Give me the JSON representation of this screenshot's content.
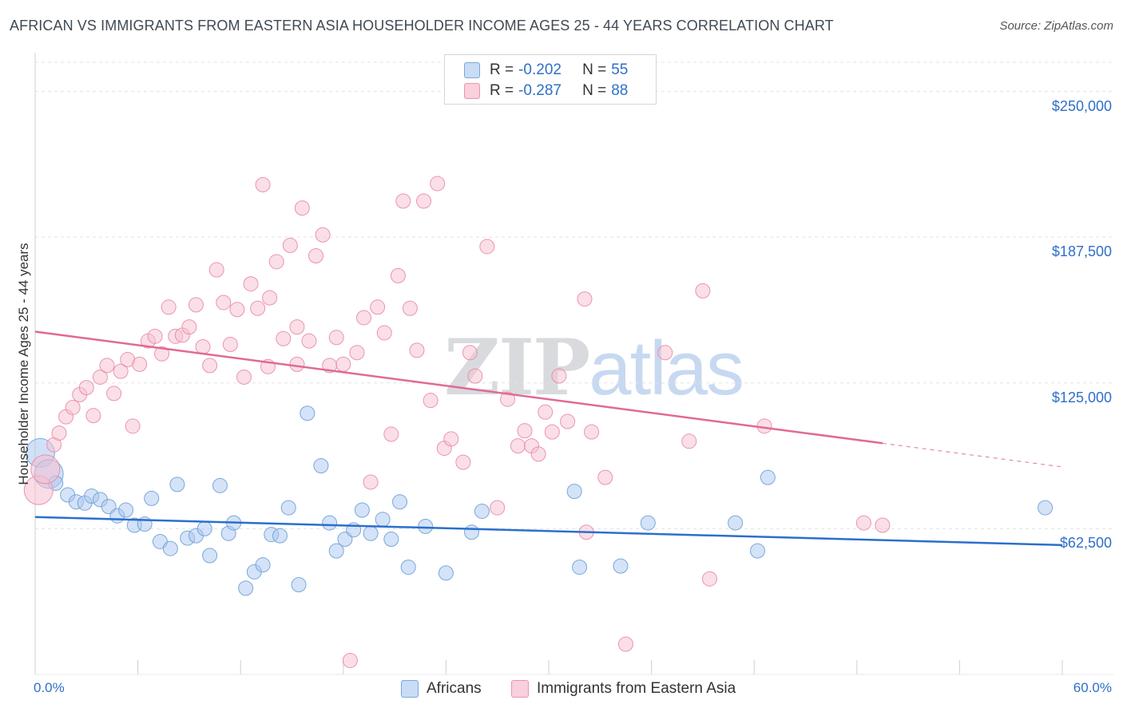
{
  "header": {
    "title": "AFRICAN VS IMMIGRANTS FROM EASTERN ASIA HOUSEHOLDER INCOME AGES 25 - 44 YEARS CORRELATION CHART",
    "source": "Source: ZipAtlas.com"
  },
  "watermark": {
    "zip": "ZIP",
    "atlas": "atlas"
  },
  "stats_legend": {
    "rows": [
      {
        "r_label": "R =",
        "r_value": "-0.202",
        "n_label": "N =",
        "n_value": "55",
        "color": "#a9c8f0"
      },
      {
        "r_label": "R =",
        "r_value": "-0.287",
        "n_label": "N =",
        "n_value": "88",
        "color": "#f4b8cb"
      }
    ]
  },
  "colors": {
    "africans_fill": "#a9c8f0",
    "africans_stroke": "#6f9fd8",
    "africans_line": "#2b6fcc",
    "asia_fill": "#f6bfd0",
    "asia_stroke": "#e98aa9",
    "asia_line": "#e06a95",
    "tick_text": "#2f6fc8",
    "grid": "#e3e3e3"
  },
  "chart_data": {
    "type": "scatter",
    "title": "AFRICAN VS IMMIGRANTS FROM EASTERN ASIA HOUSEHOLDER INCOME AGES 25 - 44 YEARS CORRELATION CHART",
    "xlabel": "",
    "ylabel": "Householder Income Ages 25 - 44 years",
    "x_unit": "%",
    "xlim": [
      0,
      60
    ],
    "ylim": [
      0,
      262500
    ],
    "x_tick_labels": [
      "0.0%",
      "60.0%"
    ],
    "y_ticks": [
      62500,
      125000,
      187500,
      250000
    ],
    "y_tick_labels": [
      "$62,500",
      "$125,000",
      "$187,500",
      "$250,000"
    ],
    "grid": true,
    "legend_position": "bottom-center",
    "series": [
      {
        "name": "Africans",
        "r": -0.202,
        "n": 55,
        "trend": {
          "x": [
            0,
            60
          ],
          "y": [
            67500,
            55500
          ],
          "dashed_from": null
        },
        "points": [
          {
            "x": 0.3,
            "y": 95000,
            "big": true
          },
          {
            "x": 0.8,
            "y": 86000,
            "big": true
          },
          {
            "x": 1.2,
            "y": 82000
          },
          {
            "x": 1.9,
            "y": 77000
          },
          {
            "x": 2.4,
            "y": 74000
          },
          {
            "x": 2.9,
            "y": 73500
          },
          {
            "x": 3.3,
            "y": 76500
          },
          {
            "x": 3.8,
            "y": 75000
          },
          {
            "x": 4.3,
            "y": 72000
          },
          {
            "x": 4.8,
            "y": 68000
          },
          {
            "x": 5.3,
            "y": 70500
          },
          {
            "x": 5.8,
            "y": 64000
          },
          {
            "x": 6.4,
            "y": 64500
          },
          {
            "x": 6.8,
            "y": 75500
          },
          {
            "x": 7.3,
            "y": 57000
          },
          {
            "x": 7.9,
            "y": 54000
          },
          {
            "x": 8.3,
            "y": 81500
          },
          {
            "x": 8.9,
            "y": 58500
          },
          {
            "x": 9.4,
            "y": 59500
          },
          {
            "x": 9.9,
            "y": 62500
          },
          {
            "x": 10.2,
            "y": 51000
          },
          {
            "x": 10.8,
            "y": 81000
          },
          {
            "x": 11.3,
            "y": 60500
          },
          {
            "x": 11.6,
            "y": 65000
          },
          {
            "x": 12.3,
            "y": 37000
          },
          {
            "x": 12.8,
            "y": 44000
          },
          {
            "x": 13.3,
            "y": 47000
          },
          {
            "x": 13.8,
            "y": 60000
          },
          {
            "x": 14.3,
            "y": 59500
          },
          {
            "x": 14.8,
            "y": 71500
          },
          {
            "x": 15.4,
            "y": 38500
          },
          {
            "x": 15.9,
            "y": 112000
          },
          {
            "x": 16.7,
            "y": 89500
          },
          {
            "x": 17.2,
            "y": 65000
          },
          {
            "x": 17.6,
            "y": 53000
          },
          {
            "x": 18.1,
            "y": 58000
          },
          {
            "x": 18.6,
            "y": 62000
          },
          {
            "x": 19.1,
            "y": 70500
          },
          {
            "x": 19.6,
            "y": 60500
          },
          {
            "x": 20.3,
            "y": 66500
          },
          {
            "x": 20.8,
            "y": 58000
          },
          {
            "x": 21.3,
            "y": 74000
          },
          {
            "x": 21.8,
            "y": 46000
          },
          {
            "x": 22.8,
            "y": 63500
          },
          {
            "x": 24.0,
            "y": 43500
          },
          {
            "x": 25.5,
            "y": 61000
          },
          {
            "x": 26.1,
            "y": 70000
          },
          {
            "x": 31.5,
            "y": 78500
          },
          {
            "x": 31.8,
            "y": 46000
          },
          {
            "x": 34.2,
            "y": 46500
          },
          {
            "x": 35.8,
            "y": 65000
          },
          {
            "x": 40.9,
            "y": 65000
          },
          {
            "x": 42.2,
            "y": 53000
          },
          {
            "x": 42.8,
            "y": 84500
          },
          {
            "x": 59.0,
            "y": 71500
          }
        ]
      },
      {
        "name": "Immigrants from Eastern Asia",
        "r": -0.287,
        "n": 88,
        "trend": {
          "x": [
            0,
            60
          ],
          "y": [
            147000,
            89000
          ],
          "dashed_from": 49.5
        },
        "points": [
          {
            "x": 0.2,
            "y": 79000,
            "big": true
          },
          {
            "x": 0.6,
            "y": 88000,
            "big": true
          },
          {
            "x": 1.1,
            "y": 98500
          },
          {
            "x": 1.4,
            "y": 103500
          },
          {
            "x": 1.8,
            "y": 110500
          },
          {
            "x": 2.2,
            "y": 114500
          },
          {
            "x": 2.6,
            "y": 120000
          },
          {
            "x": 3.0,
            "y": 123000
          },
          {
            "x": 3.4,
            "y": 111000
          },
          {
            "x": 3.8,
            "y": 127500
          },
          {
            "x": 4.2,
            "y": 132500
          },
          {
            "x": 4.6,
            "y": 120500
          },
          {
            "x": 5.0,
            "y": 130000
          },
          {
            "x": 5.4,
            "y": 135000
          },
          {
            "x": 5.7,
            "y": 106500
          },
          {
            "x": 6.1,
            "y": 133000
          },
          {
            "x": 6.6,
            "y": 143000
          },
          {
            "x": 7.0,
            "y": 145000
          },
          {
            "x": 7.4,
            "y": 137500
          },
          {
            "x": 7.8,
            "y": 157500
          },
          {
            "x": 8.2,
            "y": 145000
          },
          {
            "x": 8.6,
            "y": 145500
          },
          {
            "x": 9.0,
            "y": 149000
          },
          {
            "x": 9.4,
            "y": 158500
          },
          {
            "x": 9.8,
            "y": 140500
          },
          {
            "x": 10.2,
            "y": 132500
          },
          {
            "x": 10.6,
            "y": 173500
          },
          {
            "x": 11.0,
            "y": 159500
          },
          {
            "x": 11.4,
            "y": 141500
          },
          {
            "x": 11.8,
            "y": 156500
          },
          {
            "x": 12.2,
            "y": 127500
          },
          {
            "x": 12.6,
            "y": 167500
          },
          {
            "x": 13.0,
            "y": 157000
          },
          {
            "x": 13.3,
            "y": 210000
          },
          {
            "x": 13.7,
            "y": 161500
          },
          {
            "x": 14.1,
            "y": 177000
          },
          {
            "x": 14.5,
            "y": 144000
          },
          {
            "x": 14.9,
            "y": 184000
          },
          {
            "x": 15.3,
            "y": 149000
          },
          {
            "x": 15.6,
            "y": 200000
          },
          {
            "x": 16.0,
            "y": 143000
          },
          {
            "x": 16.4,
            "y": 179500
          },
          {
            "x": 16.8,
            "y": 188500
          },
          {
            "x": 17.2,
            "y": 132500
          },
          {
            "x": 17.6,
            "y": 144500
          },
          {
            "x": 18.0,
            "y": 133000
          },
          {
            "x": 18.4,
            "y": 6000
          },
          {
            "x": 18.8,
            "y": 138000
          },
          {
            "x": 19.2,
            "y": 153000
          },
          {
            "x": 19.6,
            "y": 82500
          },
          {
            "x": 20.0,
            "y": 157500
          },
          {
            "x": 20.4,
            "y": 146500
          },
          {
            "x": 20.8,
            "y": 103000
          },
          {
            "x": 21.2,
            "y": 171000
          },
          {
            "x": 21.5,
            "y": 203000
          },
          {
            "x": 21.9,
            "y": 157000
          },
          {
            "x": 22.3,
            "y": 139000
          },
          {
            "x": 22.7,
            "y": 203000
          },
          {
            "x": 23.1,
            "y": 117500
          },
          {
            "x": 23.5,
            "y": 210500
          },
          {
            "x": 23.9,
            "y": 97000
          },
          {
            "x": 24.3,
            "y": 101000
          },
          {
            "x": 25.0,
            "y": 91000
          },
          {
            "x": 25.4,
            "y": 138000
          },
          {
            "x": 25.7,
            "y": 128000
          },
          {
            "x": 26.4,
            "y": 183500
          },
          {
            "x": 27.0,
            "y": 71500
          },
          {
            "x": 27.6,
            "y": 118000
          },
          {
            "x": 28.2,
            "y": 98000
          },
          {
            "x": 28.6,
            "y": 104500
          },
          {
            "x": 29.0,
            "y": 98000
          },
          {
            "x": 29.4,
            "y": 94500
          },
          {
            "x": 29.8,
            "y": 112500
          },
          {
            "x": 30.2,
            "y": 104000
          },
          {
            "x": 30.6,
            "y": 128000
          },
          {
            "x": 31.1,
            "y": 108500
          },
          {
            "x": 32.2,
            "y": 61000
          },
          {
            "x": 32.5,
            "y": 104000
          },
          {
            "x": 33.3,
            "y": 84500
          },
          {
            "x": 32.1,
            "y": 161000
          },
          {
            "x": 34.5,
            "y": 13000
          },
          {
            "x": 36.8,
            "y": 138000
          },
          {
            "x": 38.2,
            "y": 100000
          },
          {
            "x": 39.0,
            "y": 164500
          },
          {
            "x": 39.4,
            "y": 41000
          },
          {
            "x": 42.6,
            "y": 106500
          },
          {
            "x": 48.4,
            "y": 65000
          },
          {
            "x": 49.5,
            "y": 64000
          },
          {
            "x": 15.3,
            "y": 133000
          },
          {
            "x": 13.6,
            "y": 132000
          }
        ]
      }
    ]
  },
  "bottom_legend": {
    "items": [
      {
        "label": "Africans"
      },
      {
        "label": "Immigrants from Eastern Asia"
      }
    ]
  }
}
